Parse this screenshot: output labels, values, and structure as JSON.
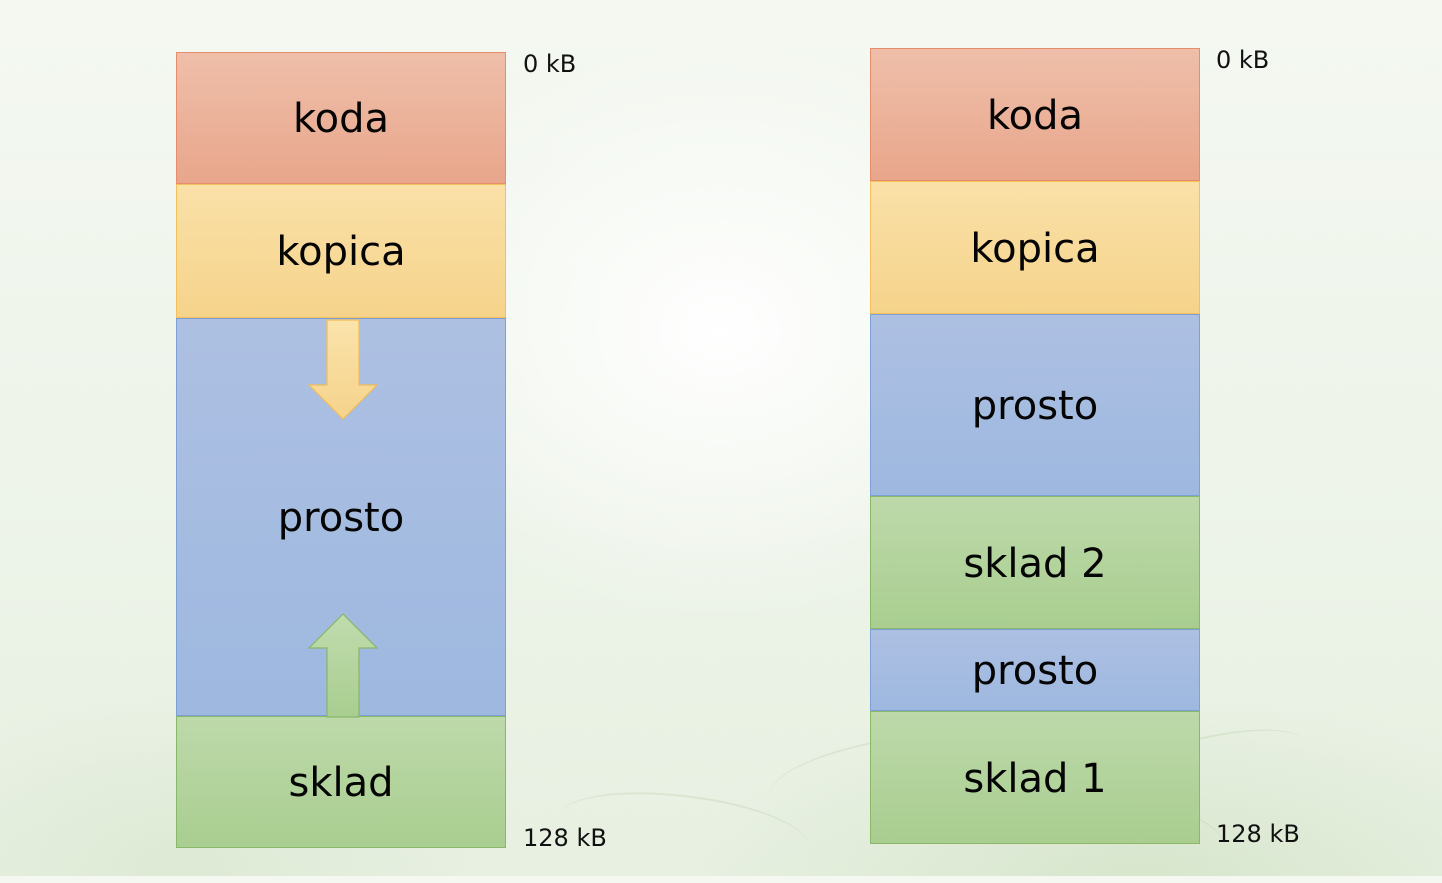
{
  "left_column": {
    "segments": [
      {
        "label": "koda"
      },
      {
        "label": "kopica"
      },
      {
        "label": "prosto"
      },
      {
        "label": "sklad"
      }
    ],
    "addresses": {
      "top": "0 kB",
      "bottom": "128 kB"
    },
    "arrows": [
      {
        "icon": "down-arrow-icon",
        "color": "#f5d38b"
      },
      {
        "icon": "up-arrow-icon",
        "color": "#a9ce90"
      }
    ]
  },
  "right_column": {
    "segments": [
      {
        "label": "koda"
      },
      {
        "label": "kopica"
      },
      {
        "label": "prosto"
      },
      {
        "label": "sklad 2"
      },
      {
        "label": "prosto"
      },
      {
        "label": "sklad 1"
      }
    ],
    "addresses": {
      "top": "0 kB",
      "bottom": "128 kB"
    }
  },
  "colors": {
    "code": "#e8a68b",
    "heap": "#f5d38b",
    "free": "#9eb8e0",
    "stack": "#a9ce90"
  }
}
